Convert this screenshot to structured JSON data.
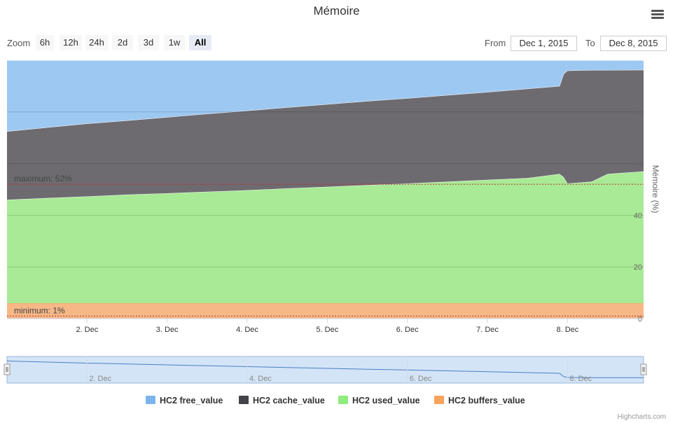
{
  "title": "Mémoire",
  "zoom": {
    "label": "Zoom",
    "buttons": [
      "6h",
      "12h",
      "24h",
      "2d",
      "3d",
      "1w",
      "All"
    ],
    "selected": "All"
  },
  "range": {
    "from_label": "From",
    "from_value": "Dec 1, 2015",
    "to_label": "To",
    "to_value": "Dec 8, 2015"
  },
  "menu_icon": "hamburger-menu-icon",
  "colors": {
    "free": "#9dc8f1",
    "cache": "#6d6b70",
    "used": "#a8ea95",
    "buffers": "#f6b887",
    "navigator_fill": "#d4e4f7",
    "navigator_line": "#4a7fc1"
  },
  "chart_data": {
    "type": "area",
    "stacking": "normal",
    "title": "Mémoire",
    "ylabel": "Mémoire (%)",
    "ylim": [
      0,
      100
    ],
    "y_ticks": [
      0,
      20,
      40,
      60,
      80
    ],
    "x_tick_labels": [
      "2. Dec",
      "3. Dec",
      "4. Dec",
      "5. Dec",
      "6. Dec",
      "7. Dec",
      "8. Dec"
    ],
    "x_ticks_days": [
      1,
      2,
      3,
      4,
      5,
      6,
      7
    ],
    "x_range_days": [
      0,
      7.95
    ],
    "x": [
      0,
      0.5,
      1,
      1.5,
      2,
      2.5,
      3,
      3.5,
      4,
      4.5,
      5,
      5.5,
      6,
      6.5,
      6.9,
      6.95,
      7.0,
      7.3,
      7.5,
      7.95
    ],
    "series": [
      {
        "name": "HC2 buffers_value",
        "values": [
          6,
          6,
          6,
          6,
          6,
          6,
          6,
          6,
          6,
          6,
          6,
          6,
          6,
          6,
          6,
          6,
          6,
          6,
          6,
          6
        ]
      },
      {
        "name": "HC2 used_value",
        "values": [
          40,
          40.7,
          41.3,
          42,
          42.5,
          43.1,
          43.7,
          44.4,
          45,
          45.7,
          46.3,
          47,
          47.7,
          48.4,
          50,
          48.8,
          46.3,
          47,
          50,
          51
        ]
      },
      {
        "name": "HC2 cache_value",
        "values": [
          26.5,
          27.3,
          28.2,
          28.7,
          29.5,
          30.2,
          30.8,
          31.4,
          32,
          32.5,
          33,
          33.5,
          34,
          34.6,
          34,
          39.9,
          43.7,
          43.2,
          40.2,
          39.3
        ]
      },
      {
        "name": "HC2 free_value",
        "values": [
          27.5,
          26,
          24.5,
          23.3,
          22,
          20.7,
          19.5,
          18.2,
          17,
          15.8,
          14.7,
          13.5,
          12.3,
          11,
          10,
          5.3,
          4,
          3.8,
          3.8,
          3.7
        ]
      }
    ],
    "plot_lines": [
      {
        "label": "maximum: 52%",
        "value": 52
      },
      {
        "label": "minimum: 1%",
        "value": 1
      }
    ],
    "navigator_x_labels": [
      "2. Dec",
      "4. Dec",
      "6. Dec",
      "8. Dec"
    ],
    "legend": [
      "HC2 free_value",
      "HC2 cache_value",
      "HC2 used_value",
      "HC2 buffers_value"
    ],
    "legend_position": "bottom"
  },
  "credits": "Highcharts.com"
}
